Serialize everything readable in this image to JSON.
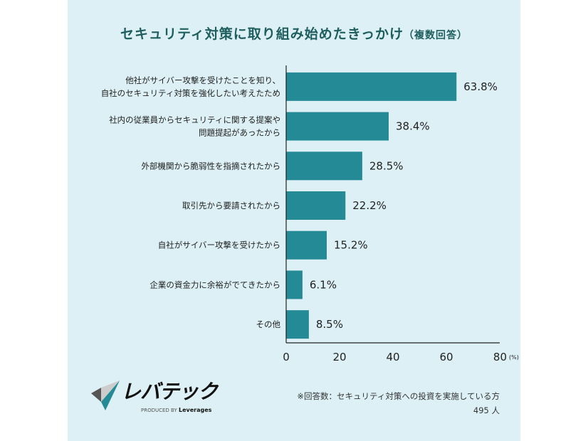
{
  "chart_data": {
    "type": "bar",
    "orientation": "horizontal",
    "title": "セキュリティ対策に取り組み始めたきっかけ",
    "subtitle": "（複数回答）",
    "categories": [
      [
        "他社がサイバー攻撃を受けたことを知り、",
        "自社のセキュリティ対策を強化したい考えたため"
      ],
      [
        "社内の従業員からセキュリティに関する提案や",
        "問題提起があったから"
      ],
      [
        "外部機関から脆弱性を指摘されたから"
      ],
      [
        "取引先から要請されたから"
      ],
      [
        "自社がサイバー攻撃を受けたから"
      ],
      [
        "企業の資金力に余裕がでてきたから"
      ],
      [
        "その他"
      ]
    ],
    "values": [
      63.8,
      38.4,
      28.5,
      22.2,
      15.2,
      6.1,
      8.5
    ],
    "value_labels": [
      "63.8%",
      "38.4%",
      "28.5%",
      "22.2%",
      "15.2%",
      "6.1%",
      "8.5%"
    ],
    "xlim": [
      0,
      80
    ],
    "ticks": [
      "0",
      "20",
      "40",
      "60",
      "80"
    ],
    "unit_label": "(%)",
    "bar_color": "#238a96"
  },
  "footer": {
    "brand": "レバテック",
    "produced_by": "PRODUCED BY",
    "company": "Leverages",
    "note": "※回答数：セキュリティ対策への投資を実施している方",
    "count": "495 人"
  }
}
